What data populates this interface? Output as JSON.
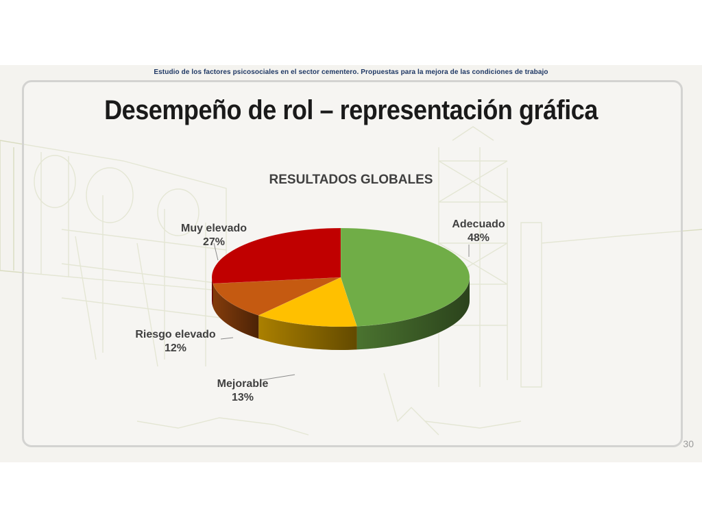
{
  "slide": {
    "subtitle": "Estudio de los factores psicosociales en el sector cementero. Propuestas para la mejora de las condiciones de trabajo",
    "title": "Desempeño de rol – representación gráfica",
    "page_number": "30"
  },
  "chart_data": {
    "type": "pie",
    "title": "RESULTADOS GLOBALES",
    "three_d": true,
    "start_angle_deg": 0,
    "direction": "clockwise",
    "slices": [
      {
        "label": "Adecuado",
        "value": 48,
        "value_label": "48%",
        "color": "#70ad47"
      },
      {
        "label": "Mejorable",
        "value": 13,
        "value_label": "13%",
        "color": "#ffc000"
      },
      {
        "label": "Riesgo elevado",
        "value": 12,
        "value_label": "12%",
        "color": "#c55a11"
      },
      {
        "label": "Muy elevado",
        "value": 27,
        "value_label": "27%",
        "color": "#c00000"
      }
    ]
  },
  "colors": {
    "title_text": "#1a1a1a",
    "subtitle_text": "#1f3864",
    "label_text": "#404040",
    "background": "#f4f3ef"
  }
}
